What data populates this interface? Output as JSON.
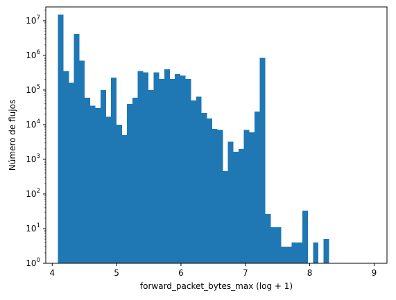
{
  "chart_data": {
    "type": "bar",
    "title": "",
    "xlabel": "forward_packet_bytes_max (log + 1)",
    "ylabel": "Número de flujos",
    "xlim": [
      3.9,
      9.2
    ],
    "ylim": [
      1,
      25000000
    ],
    "yscale": "log",
    "x_ticks": [
      "4",
      "5",
      "6",
      "7",
      "8",
      "9"
    ],
    "y_ticks": [
      {
        "exp": "0"
      },
      {
        "exp": "1"
      },
      {
        "exp": "2"
      },
      {
        "exp": "3"
      },
      {
        "exp": "4"
      },
      {
        "exp": "5"
      },
      {
        "exp": "6"
      },
      {
        "exp": "7"
      }
    ],
    "y_tick_base": "10",
    "bar_color": "#1f77b4",
    "bin_start": 4.09,
    "bin_width": 0.0825,
    "counts": [
      15000000,
      350000,
      160000,
      4200000,
      700000,
      60000,
      35000,
      30000,
      100000,
      17000,
      230000,
      10000,
      5000,
      40000,
      60000,
      350000,
      320000,
      100000,
      320000,
      210000,
      400000,
      210000,
      290000,
      260000,
      210000,
      50000,
      65000,
      22000,
      15000,
      7500,
      7000,
      460,
      3200,
      1650,
      2000,
      7000,
      6000,
      24000,
      850000,
      26,
      11,
      11,
      3,
      3,
      4,
      4,
      33,
      0,
      4,
      0,
      5
    ]
  }
}
